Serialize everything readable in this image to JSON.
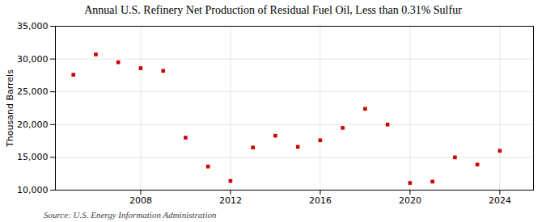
{
  "chart_data": {
    "type": "scatter",
    "title": "Annual U.S. Refinery Net Production of Residual Fuel Oil, Less than 0.31% Sulfur",
    "ylabel": "Thousand Barrels",
    "annotations": [
      "Source: U.S. Energy Information Administration"
    ],
    "x": [
      2005,
      2006,
      2007,
      2008,
      2009,
      2010,
      2011,
      2012,
      2013,
      2014,
      2015,
      2016,
      2017,
      2018,
      2019,
      2020,
      2021,
      2022,
      2023,
      2024
    ],
    "values": [
      27600,
      30700,
      29500,
      28600,
      28200,
      18000,
      13600,
      11400,
      16500,
      18300,
      16600,
      17600,
      19500,
      22400,
      20000,
      11100,
      11300,
      15000,
      13900,
      16000
    ],
    "color": "#cc0000",
    "marker": "square",
    "xlim": [
      2004.2,
      2025.5
    ],
    "xticks": [
      2008,
      2012,
      2016,
      2020,
      2024
    ],
    "ylim": [
      10000,
      35000
    ],
    "yticks": [
      {
        "value": 10000,
        "label": "10,000"
      },
      {
        "value": 15000,
        "label": "15,000"
      },
      {
        "value": 20000,
        "label": "20,000"
      },
      {
        "value": 25000,
        "label": "25,000"
      },
      {
        "value": 30000,
        "label": "30,000"
      },
      {
        "value": 35000,
        "label": "35,000"
      }
    ],
    "grid": true
  }
}
